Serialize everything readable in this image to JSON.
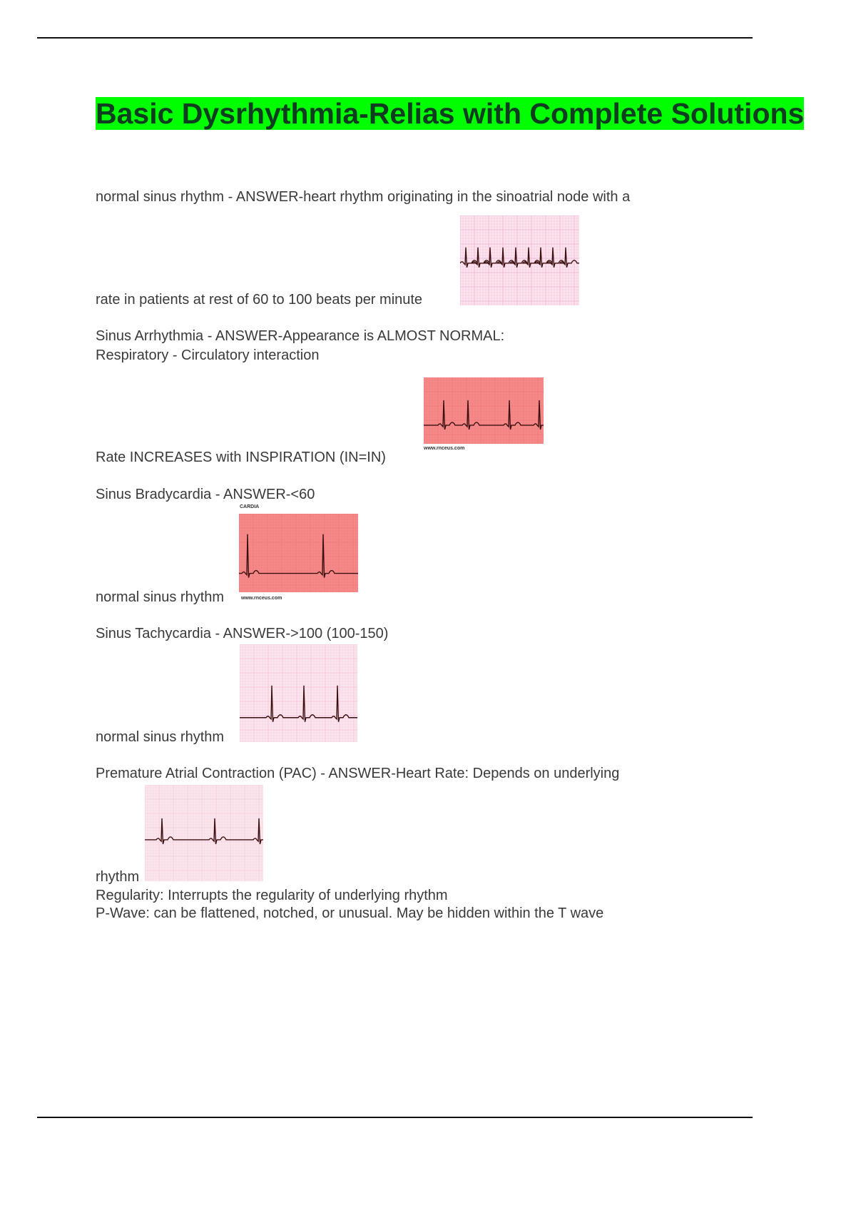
{
  "document": {
    "title": "Basic Dysrhythmia-Relias with Complete Solutions",
    "title_highlight_color": "#00ff00",
    "entries": [
      {
        "lines": [
          "normal sinus rhythm - ANSWER-heart rhythm originating in the sinoatrial node with a",
          "rate in patients at rest of 60 to 100 beats per minute"
        ],
        "image": {
          "kind": "ecg-strip",
          "grid_color": "#f4b8d6"
        }
      },
      {
        "lines": [
          "Sinus Arrhythmia - ANSWER-Appearance is ALMOST NORMAL:",
          "Respiratory - Circulatory interaction",
          "Rate INCREASES with INSPIRATION (IN=IN)"
        ],
        "image": {
          "kind": "ecg-strip",
          "grid_color": "#f27a7a",
          "caption": "www.rnceus.com"
        }
      },
      {
        "lines": [
          "Sinus Bradycardia - ANSWER-<60",
          "normal sinus rhythm"
        ],
        "image": {
          "kind": "ecg-strip",
          "grid_color": "#f27a7a",
          "label": "CARDIA",
          "caption": "www.rnceus.com"
        }
      },
      {
        "lines": [
          "Sinus Tachycardia - ANSWER->100 (100-150)",
          "normal sinus rhythm"
        ],
        "image": {
          "kind": "ecg-strip",
          "grid_color": "#f6c6dc"
        }
      },
      {
        "lines": [
          "Premature Atrial Contraction (PAC) - ANSWER-Heart Rate: Depends on underlying",
          "rhythm",
          "Regularity: Interrupts the regularity of underlying rhythm",
          "P-Wave: can be flattened, notched, or unusual. May be hidden within the T wave"
        ],
        "image": {
          "kind": "ecg-strip",
          "grid_color": "#f6d0dc"
        }
      }
    ]
  }
}
